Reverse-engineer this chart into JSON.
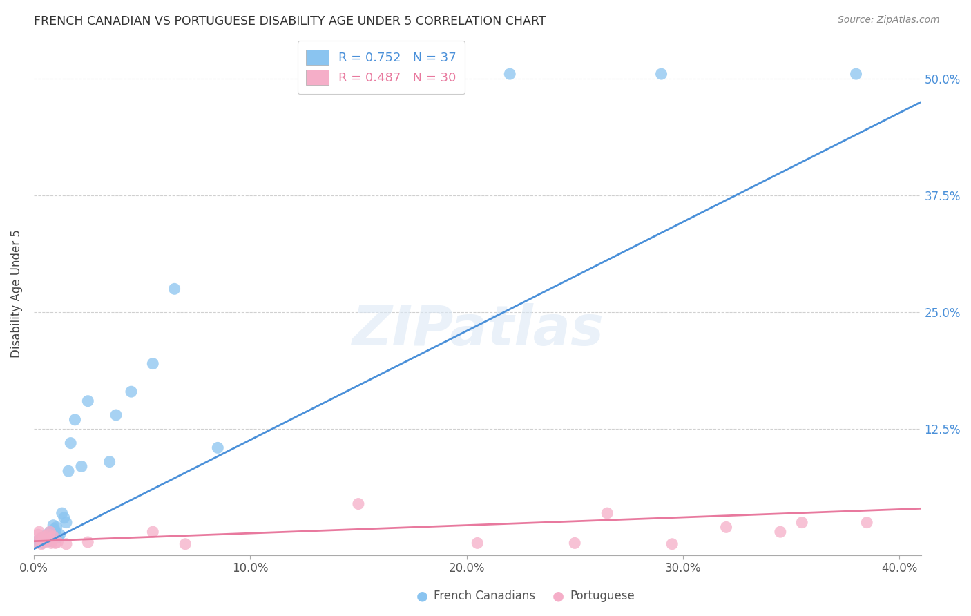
{
  "title": "FRENCH CANADIAN VS PORTUGUESE DISABILITY AGE UNDER 5 CORRELATION CHART",
  "source": "Source: ZipAtlas.com",
  "ylabel": "Disability Age Under 5",
  "x_tick_labels": [
    "0.0%",
    "10.0%",
    "20.0%",
    "30.0%",
    "40.0%"
  ],
  "x_tick_values": [
    0.0,
    10.0,
    20.0,
    30.0,
    40.0
  ],
  "y_tick_labels": [
    "12.5%",
    "25.0%",
    "37.5%",
    "50.0%"
  ],
  "y_tick_values": [
    12.5,
    25.0,
    37.5,
    50.0
  ],
  "xlim": [
    0.0,
    41.0
  ],
  "ylim": [
    -1.0,
    55.0
  ],
  "R1": 0.752,
  "N1": 37,
  "R2": 0.487,
  "N2": 30,
  "blue_color": "#8ac4f0",
  "pink_color": "#f5aec8",
  "blue_line_color": "#4a90d9",
  "pink_line_color": "#e8799e",
  "blue_scatter": [
    [
      0.1,
      0.4
    ],
    [
      0.2,
      0.6
    ],
    [
      0.3,
      0.5
    ],
    [
      0.35,
      0.8
    ],
    [
      0.4,
      0.3
    ],
    [
      0.5,
      0.9
    ],
    [
      0.55,
      0.6
    ],
    [
      0.6,
      1.2
    ],
    [
      0.65,
      1.0
    ],
    [
      0.7,
      0.5
    ],
    [
      0.75,
      1.5
    ],
    [
      0.8,
      1.1
    ],
    [
      0.85,
      0.7
    ],
    [
      0.9,
      2.2
    ],
    [
      0.95,
      1.8
    ],
    [
      1.0,
      1.5
    ],
    [
      1.05,
      2.0
    ],
    [
      1.1,
      0.9
    ],
    [
      1.2,
      1.2
    ],
    [
      1.3,
      3.5
    ],
    [
      1.4,
      3.0
    ],
    [
      1.5,
      2.5
    ],
    [
      1.6,
      8.0
    ],
    [
      1.7,
      11.0
    ],
    [
      1.9,
      13.5
    ],
    [
      2.2,
      8.5
    ],
    [
      2.5,
      15.5
    ],
    [
      3.5,
      9.0
    ],
    [
      3.8,
      14.0
    ],
    [
      4.5,
      16.5
    ],
    [
      5.5,
      19.5
    ],
    [
      6.5,
      27.5
    ],
    [
      16.0,
      50.5
    ],
    [
      22.0,
      50.5
    ],
    [
      29.0,
      50.5
    ],
    [
      38.0,
      50.5
    ],
    [
      8.5,
      10.5
    ]
  ],
  "pink_scatter": [
    [
      0.1,
      0.3
    ],
    [
      0.2,
      1.2
    ],
    [
      0.25,
      1.5
    ],
    [
      0.3,
      0.8
    ],
    [
      0.35,
      0.2
    ],
    [
      0.4,
      0.5
    ],
    [
      0.45,
      0.8
    ],
    [
      0.5,
      0.4
    ],
    [
      0.55,
      1.0
    ],
    [
      0.6,
      0.6
    ],
    [
      0.7,
      1.2
    ],
    [
      0.75,
      1.5
    ],
    [
      0.8,
      0.3
    ],
    [
      0.85,
      0.5
    ],
    [
      0.9,
      1.0
    ],
    [
      1.0,
      0.3
    ],
    [
      1.1,
      0.4
    ],
    [
      1.5,
      0.2
    ],
    [
      2.5,
      0.4
    ],
    [
      5.5,
      1.5
    ],
    [
      7.0,
      0.2
    ],
    [
      15.0,
      4.5
    ],
    [
      20.5,
      0.3
    ],
    [
      25.0,
      0.3
    ],
    [
      26.5,
      3.5
    ],
    [
      29.5,
      0.2
    ],
    [
      32.0,
      2.0
    ],
    [
      34.5,
      1.5
    ],
    [
      35.5,
      2.5
    ],
    [
      38.5,
      2.5
    ]
  ],
  "blue_line_x": [
    -1.0,
    41.0
  ],
  "blue_line_y": [
    -1.5,
    47.5
  ],
  "pink_line_x": [
    0.0,
    41.0
  ],
  "pink_line_y": [
    0.5,
    4.0
  ],
  "watermark_text": "ZIPatlas",
  "background_color": "#ffffff",
  "grid_color": "#d0d0d0"
}
